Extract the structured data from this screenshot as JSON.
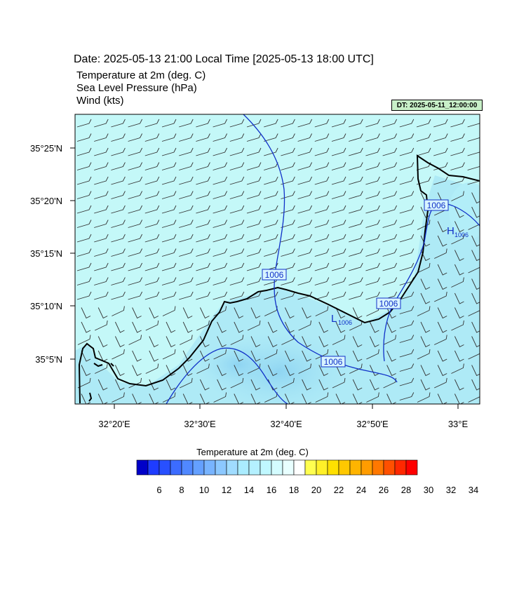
{
  "header": {
    "date_line": "Date: 2025-05-13  21:00 Local Time [2025-05-13  18:00 UTC]",
    "field_lines": [
      "Temperature at 2m   (deg. C)",
      "Sea Level Pressure   (hPa)",
      "Wind   (kts)"
    ],
    "dt_badge": "DT: 2025-05-11_12:00:00"
  },
  "map": {
    "lon_ticks": [
      "32°20'E",
      "32°30'E",
      "32°40'E",
      "32°50'E",
      "33°E"
    ],
    "lat_ticks": [
      "35°25'N",
      "35°20'N",
      "35°15'N",
      "35°10'N",
      "35°5'N"
    ],
    "isobar_labels": [
      "1006",
      "1006",
      "1006",
      "1006"
    ],
    "pressure_centers": [
      {
        "symbol": "L",
        "value": "1006"
      },
      {
        "symbol": "H",
        "value": "1006"
      }
    ],
    "colors": {
      "sea": "#c4f8f8",
      "land_warm": "#a0e0f4",
      "isobar": "#1030c8",
      "coast": "#000000"
    }
  },
  "colorbar": {
    "title": "Temperature at 2m  (deg. C)",
    "labels": [
      "6",
      "8",
      "10",
      "12",
      "14",
      "16",
      "18",
      "20",
      "22",
      "24",
      "26",
      "28",
      "30",
      "32",
      "34"
    ],
    "colors": [
      "#0000c8",
      "#1e3cff",
      "#2850ff",
      "#3c6cff",
      "#5088ff",
      "#64a0ff",
      "#78b4ff",
      "#8cc8ff",
      "#a0dcff",
      "#aaecff",
      "#b4f0ff",
      "#c0f8ff",
      "#d4fcff",
      "#e8ffff",
      "#ffffff",
      "#ffff50",
      "#fff028",
      "#ffe000",
      "#ffc800",
      "#ffb400",
      "#ff9c00",
      "#ff7800",
      "#ff5000",
      "#ff2800",
      "#ff0000"
    ]
  }
}
